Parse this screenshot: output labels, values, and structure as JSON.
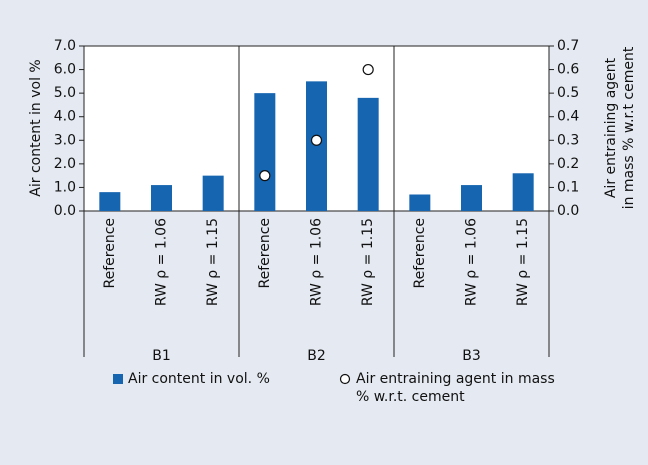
{
  "chart_data": {
    "type": "bar",
    "ylabel": "Air content in vol %",
    "y2label": [
      "Air entraining agent",
      "in mass % w.r.t cement"
    ],
    "categories": [
      "Reference",
      "RW ρ = 1.06",
      "RW ρ = 1.15",
      "Reference",
      "RW ρ = 1.06",
      "RW ρ = 1.15",
      "Reference",
      "RW ρ = 1.06",
      "RW ρ = 1.15"
    ],
    "groups": [
      "B1",
      "B2",
      "B3"
    ],
    "series": [
      {
        "name": "Air content in vol. %",
        "type": "bar",
        "color": "#1565b0",
        "values": [
          0.8,
          1.1,
          1.5,
          5.0,
          5.5,
          4.8,
          0.7,
          1.1,
          1.6
        ]
      },
      {
        "name": "Air entraining agent in mass % w.r.t. cement",
        "type": "scatter",
        "axis": "y2",
        "color": "#ffffff",
        "values": [
          null,
          null,
          null,
          0.15,
          0.3,
          0.6,
          null,
          null,
          null
        ]
      }
    ],
    "ylim": [
      0,
      7
    ],
    "yticks": [
      {
        "value": 0,
        "label": "0.0"
      },
      {
        "value": 1,
        "label": "1.0"
      },
      {
        "value": 2,
        "label": "2.0"
      },
      {
        "value": 3,
        "label": "3.0"
      },
      {
        "value": 4,
        "label": "4.0"
      },
      {
        "value": 5,
        "label": "5.0"
      },
      {
        "value": 6,
        "label": "6.0"
      },
      {
        "value": 7,
        "label": "7.0"
      }
    ],
    "y2lim": [
      0,
      0.7
    ],
    "y2ticks": [
      {
        "value": 0,
        "label": "0.0"
      },
      0.1,
      0.2,
      0.3,
      0.4,
      0.5,
      0.6,
      0.7
    ],
    "grid": false
  }
}
